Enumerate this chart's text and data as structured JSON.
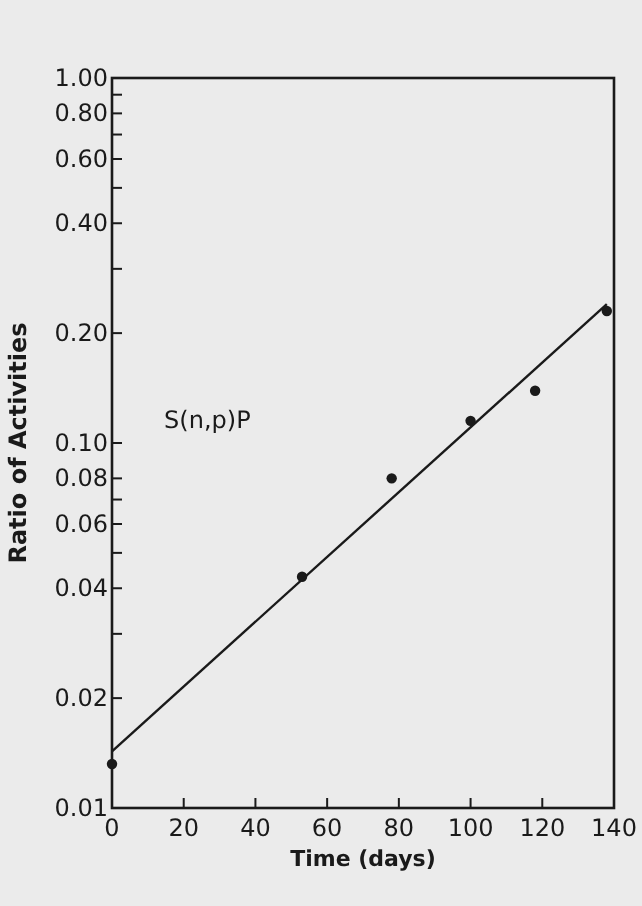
{
  "chart_data": {
    "type": "scatter",
    "xlabel": "Time (days)",
    "ylabel": "Ratio of Activities",
    "log": "y",
    "xlim": [
      0,
      140
    ],
    "xticks": [
      0,
      20,
      40,
      60,
      80,
      100,
      120,
      140
    ],
    "ylim": [
      0.01,
      1
    ],
    "yticks": [
      {
        "value": 0.01,
        "label": "0.01"
      },
      {
        "value": 0.02,
        "label": "0.02"
      },
      {
        "value": 0.03,
        "label": null
      },
      {
        "value": 0.04,
        "label": "0.04"
      },
      {
        "value": 0.05,
        "label": null
      },
      {
        "value": 0.06,
        "label": "0.06"
      },
      {
        "value": 0.07,
        "label": null
      },
      {
        "value": 0.08,
        "label": "0.08"
      },
      {
        "value": 0.1,
        "label": "0.10"
      },
      {
        "value": 0.2,
        "label": "0.20"
      },
      {
        "value": 0.3,
        "label": null
      },
      {
        "value": 0.4,
        "label": "0.40"
      },
      {
        "value": 0.5,
        "label": null
      },
      {
        "value": 0.6,
        "label": "0.60"
      },
      {
        "value": 0.7,
        "label": null
      },
      {
        "value": 0.8,
        "label": "0.80"
      },
      {
        "value": 0.9,
        "label": null
      },
      {
        "value": 1,
        "label": "1.00"
      }
    ],
    "grid": false,
    "series": [
      {
        "marker": "circle",
        "color": "#1a1a1a",
        "x": [
          0,
          53,
          78,
          100,
          118,
          138
        ],
        "values": [
          0.0132,
          0.043,
          0.08,
          0.115,
          0.139,
          0.23
        ]
      },
      {
        "type": "line",
        "marker": "none",
        "color": "#1a1a1a",
        "x": [
          0,
          138
        ],
        "values": [
          0.0143,
          0.24
        ]
      }
    ],
    "annotations": [
      "S(n,p)P"
    ]
  }
}
